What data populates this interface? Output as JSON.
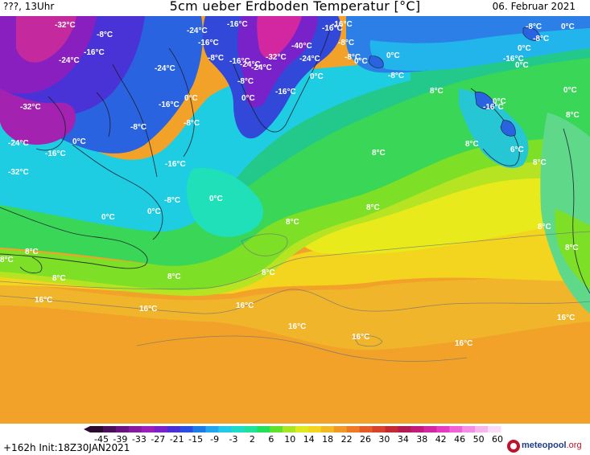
{
  "header": {
    "left": "???, 13Uhr",
    "title": "5cm ueber Erdboden Temperatur [°C]",
    "date": "06. Februar 2021"
  },
  "footer": {
    "run_info": "+162h  Init:18Z30JAN2021",
    "logo_name": "meteopool",
    "logo_tld": ".org"
  },
  "colorbar": {
    "ticks": [
      "-45",
      "-39",
      "-33",
      "-27",
      "-21",
      "-15",
      "-9",
      "-3",
      "2",
      "6",
      "10",
      "14",
      "18",
      "22",
      "26",
      "30",
      "34",
      "38",
      "42",
      "46",
      "50",
      "60"
    ],
    "colors": [
      "#2a0a2e",
      "#4a0f5a",
      "#6a127f",
      "#861aa0",
      "#9b1fb8",
      "#7a22c9",
      "#4a2fd6",
      "#2b4ce2",
      "#1d7be8",
      "#22a7ee",
      "#22c9e8",
      "#1fdcc8",
      "#1fe39a",
      "#22e05a",
      "#5fe22b",
      "#a6e625",
      "#dfe91f",
      "#f3d51d",
      "#f2b922",
      "#f29925",
      "#ee7a26",
      "#e55c25",
      "#d8412a",
      "#c42a32",
      "#b21b50",
      "#c21a79",
      "#d326a1",
      "#e43bc1",
      "#ef63d6",
      "#f38fe4",
      "#f7b7ee",
      "#fbdcf6"
    ]
  },
  "map": {
    "labels": [
      {
        "t": "-32°C"
      },
      {
        "t": "-8°C"
      },
      {
        "t": "-24°C"
      },
      {
        "t": "-16°C"
      },
      {
        "t": "-24°C"
      },
      {
        "t": "-16°C"
      },
      {
        "t": "-32°C"
      },
      {
        "t": "-40°C"
      },
      {
        "t": "-24°C"
      },
      {
        "t": "-16°C"
      },
      {
        "t": "-8°C"
      },
      {
        "t": "-24°C"
      },
      {
        "t": "-8°C"
      },
      {
        "t": "-16°C"
      },
      {
        "t": "-24°C"
      },
      {
        "t": "-32°C"
      },
      {
        "t": "-24°C"
      },
      {
        "t": "-16°C"
      },
      {
        "t": "-8°C"
      },
      {
        "t": "0°C"
      },
      {
        "t": "-8°C"
      },
      {
        "t": "0°C"
      },
      {
        "t": "-8°C"
      },
      {
        "t": "-16°C"
      },
      {
        "t": "-16°C"
      },
      {
        "t": "0°C"
      },
      {
        "t": "0°C"
      },
      {
        "t": "-8°C"
      },
      {
        "t": "-16°C"
      },
      {
        "t": "0°C"
      },
      {
        "t": "-16°C"
      },
      {
        "t": "8°C"
      },
      {
        "t": "0°C"
      },
      {
        "t": "-32°C"
      },
      {
        "t": "-16°C"
      },
      {
        "t": "-8°C"
      },
      {
        "t": "-8°C"
      },
      {
        "t": "0°C"
      },
      {
        "t": "-24°C"
      },
      {
        "t": "-16°C"
      },
      {
        "t": "-16°C"
      },
      {
        "t": "8°C"
      },
      {
        "t": "0°C"
      },
      {
        "t": "8°C"
      },
      {
        "t": "8°C"
      },
      {
        "t": "6°C"
      },
      {
        "t": "8°C"
      },
      {
        "t": "-8°C"
      },
      {
        "t": "0°C"
      },
      {
        "t": "-8°C"
      },
      {
        "t": "0°C"
      },
      {
        "t": "0°C"
      },
      {
        "t": "0°C"
      },
      {
        "t": "8°C"
      },
      {
        "t": "8°C"
      },
      {
        "t": "8°C"
      },
      {
        "t": "8°C"
      },
      {
        "t": "0°C"
      },
      {
        "t": "0°C"
      },
      {
        "t": "8°C"
      },
      {
        "t": "8°C"
      },
      {
        "t": "8°C"
      },
      {
        "t": "8°C"
      },
      {
        "t": "16°C"
      },
      {
        "t": "16°C"
      },
      {
        "t": "16°C"
      },
      {
        "t": "16°C"
      },
      {
        "t": "16°C"
      },
      {
        "t": "16°C"
      },
      {
        "t": "16°C"
      },
      {
        "t": "8°C"
      }
    ]
  }
}
